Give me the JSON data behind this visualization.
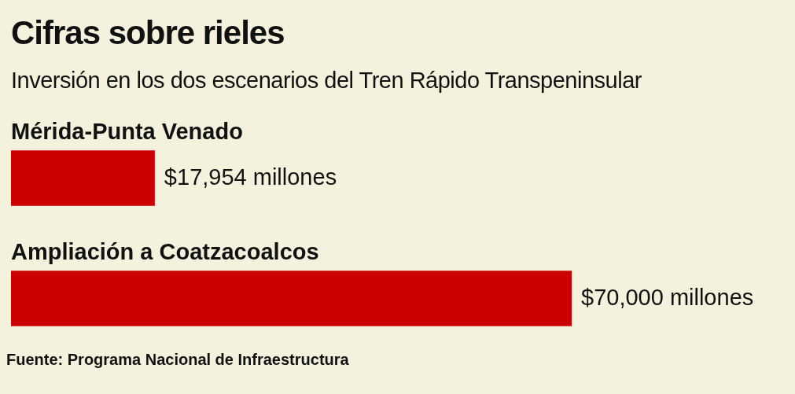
{
  "chart_data": {
    "type": "bar",
    "orientation": "horizontal",
    "title": "Cifras sobre rieles",
    "subtitle": "Inversión en los dos escenarios del Tren Rápido Transpeninsular",
    "categories": [
      "Mérida-Punta Venado",
      "Ampliación a Coatzacoalcos"
    ],
    "values": [
      17954,
      70000
    ],
    "color": "#cc0000",
    "value_labels": [
      "$17,954 millones",
      "$70,000 millones"
    ],
    "annotations": [
      "Fuente: Programa Nacional de Infraestructura"
    ]
  }
}
